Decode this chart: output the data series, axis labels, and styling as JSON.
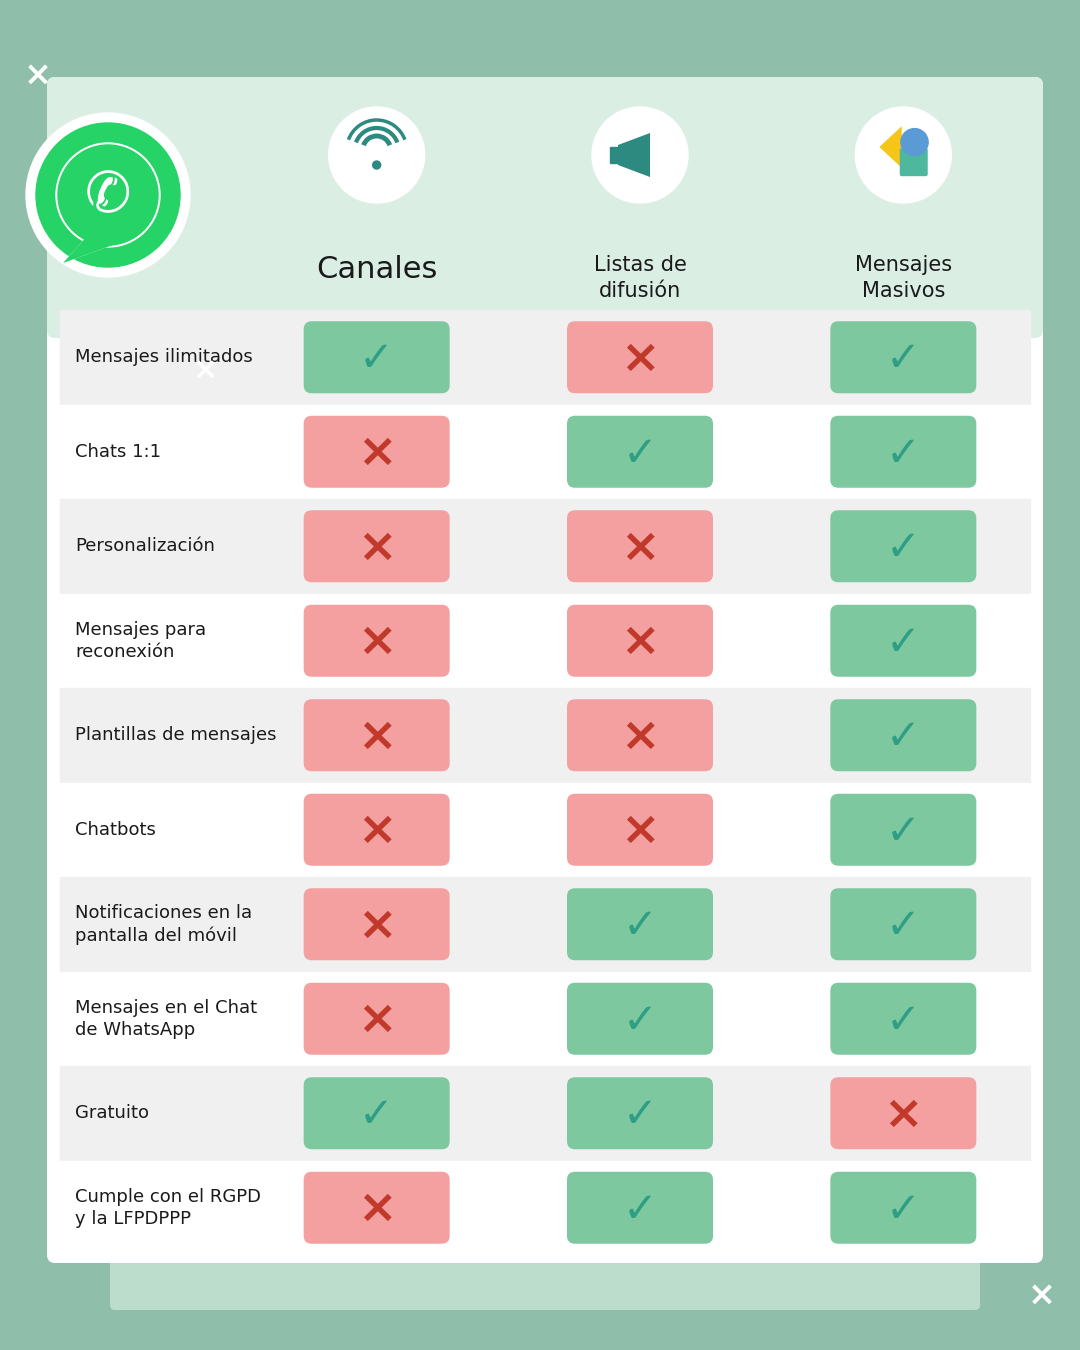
{
  "bg_color": "#8fbeaa",
  "card_color": "#ffffff",
  "col_header_bg": "#daeee3",
  "row_even_color": "#f0f0f0",
  "row_odd_color": "#ffffff",
  "green_pill": "#7ec8a0",
  "red_pill": "#f5a0a0",
  "check_color": "#2e9e85",
  "cross_color": "#c0392b",
  "text_color": "#1a1a1a",
  "label_fontsize": 13,
  "header_fontsize": 22,
  "subheader_fontsize": 15,
  "columns": [
    "Canales",
    "Listas de\ndifusión",
    "Mensajes\nMasivos"
  ],
  "rows": [
    "Mensajes ilimitados",
    "Chats 1:1",
    "Personalización",
    "Mensajes para\nreconexión",
    "Plantillas de mensajes",
    "Chatbots",
    "Notificaciones en la\npantalla del móvil",
    "Mensajes en el Chat\nde WhatsApp",
    "Gratuito",
    "Cumple con el RGPD\ny la LFPDPPP"
  ],
  "data": [
    [
      true,
      false,
      true
    ],
    [
      false,
      true,
      true
    ],
    [
      false,
      false,
      true
    ],
    [
      false,
      false,
      true
    ],
    [
      false,
      false,
      true
    ],
    [
      false,
      false,
      true
    ],
    [
      false,
      true,
      true
    ],
    [
      false,
      true,
      true
    ],
    [
      true,
      true,
      false
    ],
    [
      false,
      true,
      true
    ]
  ],
  "x_mark": "×",
  "check_mark": "✓",
  "wa_green": "#25d366",
  "left_panel_color": "#8fbeaa",
  "teal_icon_color": "#2d8a80",
  "icon_bg_color": "#ffffff"
}
